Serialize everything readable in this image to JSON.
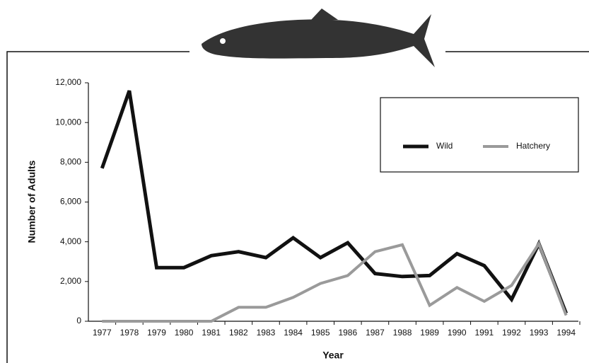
{
  "chart_data": {
    "type": "line",
    "xlabel": "Year",
    "ylabel": "Number of Adults",
    "categories": [
      "1977",
      "1978",
      "1979",
      "1980",
      "1981",
      "1982",
      "1983",
      "1984",
      "1985",
      "1986",
      "1987",
      "1988",
      "1989",
      "1990",
      "1991",
      "1992",
      "1993",
      "1994"
    ],
    "series": [
      {
        "name": "Wild",
        "color": "#111111",
        "values": [
          7700,
          11600,
          2700,
          2700,
          3300,
          3500,
          3200,
          4200,
          3200,
          3950,
          2400,
          2250,
          2300,
          3400,
          2800,
          1100,
          3900,
          400
        ]
      },
      {
        "name": "Hatchery",
        "color": "#9a9a9a",
        "values": [
          0,
          0,
          0,
          0,
          0,
          700,
          700,
          1200,
          1900,
          2300,
          3500,
          3850,
          800,
          1700,
          1000,
          1800,
          3900,
          300
        ]
      }
    ],
    "ylim": [
      0,
      12000
    ],
    "yticks": [
      0,
      {
        "value": 2000,
        "label": "2,000"
      },
      {
        "value": 4000,
        "label": "4,000"
      },
      {
        "value": 6000,
        "label": "6,000"
      },
      {
        "value": 8000,
        "label": "8,000"
      },
      {
        "value": 10000,
        "label": "10,000"
      },
      {
        "value": 12000,
        "label": "12,000"
      }
    ],
    "legend": "upper right"
  }
}
